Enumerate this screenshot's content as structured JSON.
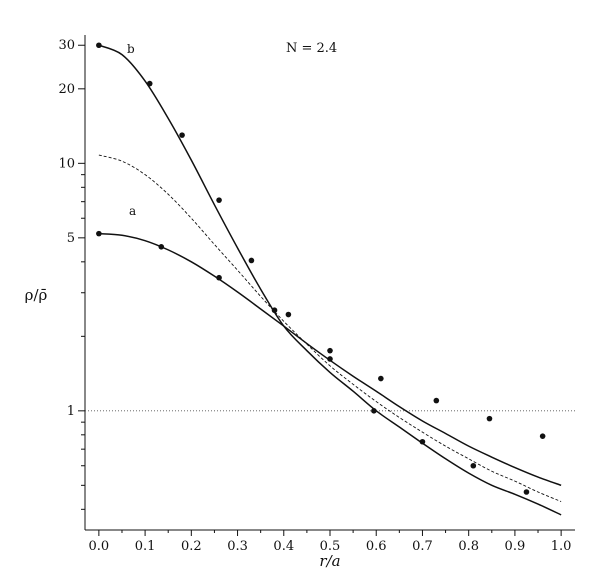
{
  "chart_data": {
    "type": "line",
    "xlabel": "r/a",
    "ylabel": "ρ/ρ̄",
    "yscale": "log",
    "xlim": [
      -0.03,
      1.03
    ],
    "ylim": [
      0.33,
      33
    ],
    "xticks": [
      0.0,
      0.1,
      0.2,
      0.3,
      0.4,
      0.5,
      0.6,
      0.7,
      0.8,
      0.9,
      1.0
    ],
    "xtick_labels": [
      "0.0",
      "0.1",
      "0.2",
      "0.3",
      "0.4",
      "0.5",
      "0.6",
      "0.7",
      "0.8",
      "0.9",
      "1.0"
    ],
    "yticks_labeled": [
      1,
      5,
      10,
      20,
      30
    ],
    "ytick_labels": [
      "1",
      "5",
      "10",
      "20",
      "30"
    ],
    "yticks_minor": [
      0.4,
      0.5,
      0.6,
      0.7,
      0.8,
      0.9,
      2,
      3,
      4,
      6,
      7,
      8,
      9
    ],
    "annotation": "N = 2.4",
    "reference_line": {
      "y": 1,
      "style": "dotted"
    },
    "grid": false,
    "series": [
      {
        "name": "a",
        "style": "solid",
        "x": [
          0.0,
          0.05,
          0.1,
          0.15,
          0.2,
          0.25,
          0.3,
          0.35,
          0.4,
          0.45,
          0.5,
          0.55,
          0.6,
          0.65,
          0.7,
          0.75,
          0.8,
          0.85,
          0.9,
          0.95,
          1.0
        ],
        "y": [
          5.2,
          5.12,
          4.87,
          4.47,
          4.0,
          3.5,
          3.02,
          2.58,
          2.2,
          1.87,
          1.6,
          1.38,
          1.2,
          1.04,
          0.91,
          0.81,
          0.72,
          0.65,
          0.59,
          0.54,
          0.5
        ]
      },
      {
        "name": "b",
        "style": "solid",
        "x": [
          0.0,
          0.05,
          0.1,
          0.15,
          0.2,
          0.25,
          0.3,
          0.35,
          0.4,
          0.45,
          0.5,
          0.55,
          0.6,
          0.65,
          0.7,
          0.75,
          0.8,
          0.85,
          0.9,
          0.95,
          1.0
        ],
        "y": [
          30.0,
          27.5,
          21.5,
          15.2,
          10.3,
          6.8,
          4.55,
          3.1,
          2.2,
          1.75,
          1.43,
          1.2,
          1.0,
          0.86,
          0.74,
          0.64,
          0.56,
          0.5,
          0.46,
          0.42,
          0.38
        ]
      },
      {
        "name": "",
        "style": "dashed",
        "x": [
          0.0,
          0.05,
          0.1,
          0.15,
          0.2,
          0.25,
          0.3,
          0.35,
          0.4,
          0.45,
          0.5,
          0.55,
          0.6,
          0.65,
          0.7,
          0.75,
          0.8,
          0.85,
          0.9,
          0.95,
          1.0
        ],
        "y": [
          10.8,
          10.2,
          9.0,
          7.5,
          6.0,
          4.7,
          3.7,
          2.9,
          2.3,
          1.86,
          1.52,
          1.28,
          1.09,
          0.94,
          0.82,
          0.72,
          0.64,
          0.57,
          0.52,
          0.47,
          0.43
        ]
      }
    ],
    "markers": {
      "a": [
        [
          0.0,
          5.2
        ],
        [
          0.135,
          4.6
        ],
        [
          0.26,
          3.45
        ],
        [
          0.38,
          2.55
        ],
        [
          0.5,
          1.75
        ],
        [
          0.61,
          1.35
        ],
        [
          0.73,
          1.1
        ],
        [
          0.845,
          0.93
        ],
        [
          0.96,
          0.79
        ]
      ],
      "b": [
        [
          0.0,
          30.0
        ],
        [
          0.11,
          21.0
        ],
        [
          0.18,
          13.0
        ],
        [
          0.26,
          7.1
        ],
        [
          0.33,
          4.05
        ],
        [
          0.41,
          2.45
        ],
        [
          0.5,
          1.62
        ],
        [
          0.595,
          1.0
        ],
        [
          0.7,
          0.75
        ],
        [
          0.81,
          0.6
        ],
        [
          0.925,
          0.47
        ]
      ]
    }
  }
}
